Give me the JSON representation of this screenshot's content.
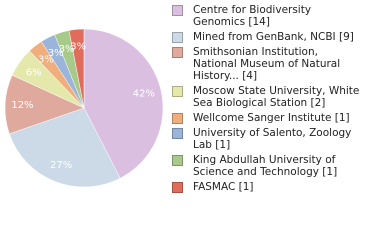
{
  "chart_data": {
    "type": "pie",
    "categories": [
      "Centre for Biodiversity Genomics [14]",
      "Mined from GenBank, NCBI [9]",
      "Smithsonian Institution, National Museum of Natural History... [4]",
      "Moscow State University, White Sea Biological Station [2]",
      "Wellcome Sanger Institute [1]",
      "University of Salento, Zoology Lab [1]",
      "King Abdullah University of Science and Technology [1]",
      "FASMAC [1]"
    ],
    "values": [
      42,
      27,
      12,
      6,
      3,
      3,
      3,
      3
    ],
    "value_labels": [
      "42%",
      "27%",
      "12%",
      "6%",
      "3%",
      "3%",
      "3%",
      "3%"
    ],
    "colors": [
      "#dbbfe1",
      "#ccd9e7",
      "#e0a99e",
      "#e4e9ab",
      "#f0ae7c",
      "#9bb5da",
      "#a7ca8b",
      "#e06c5c"
    ]
  }
}
